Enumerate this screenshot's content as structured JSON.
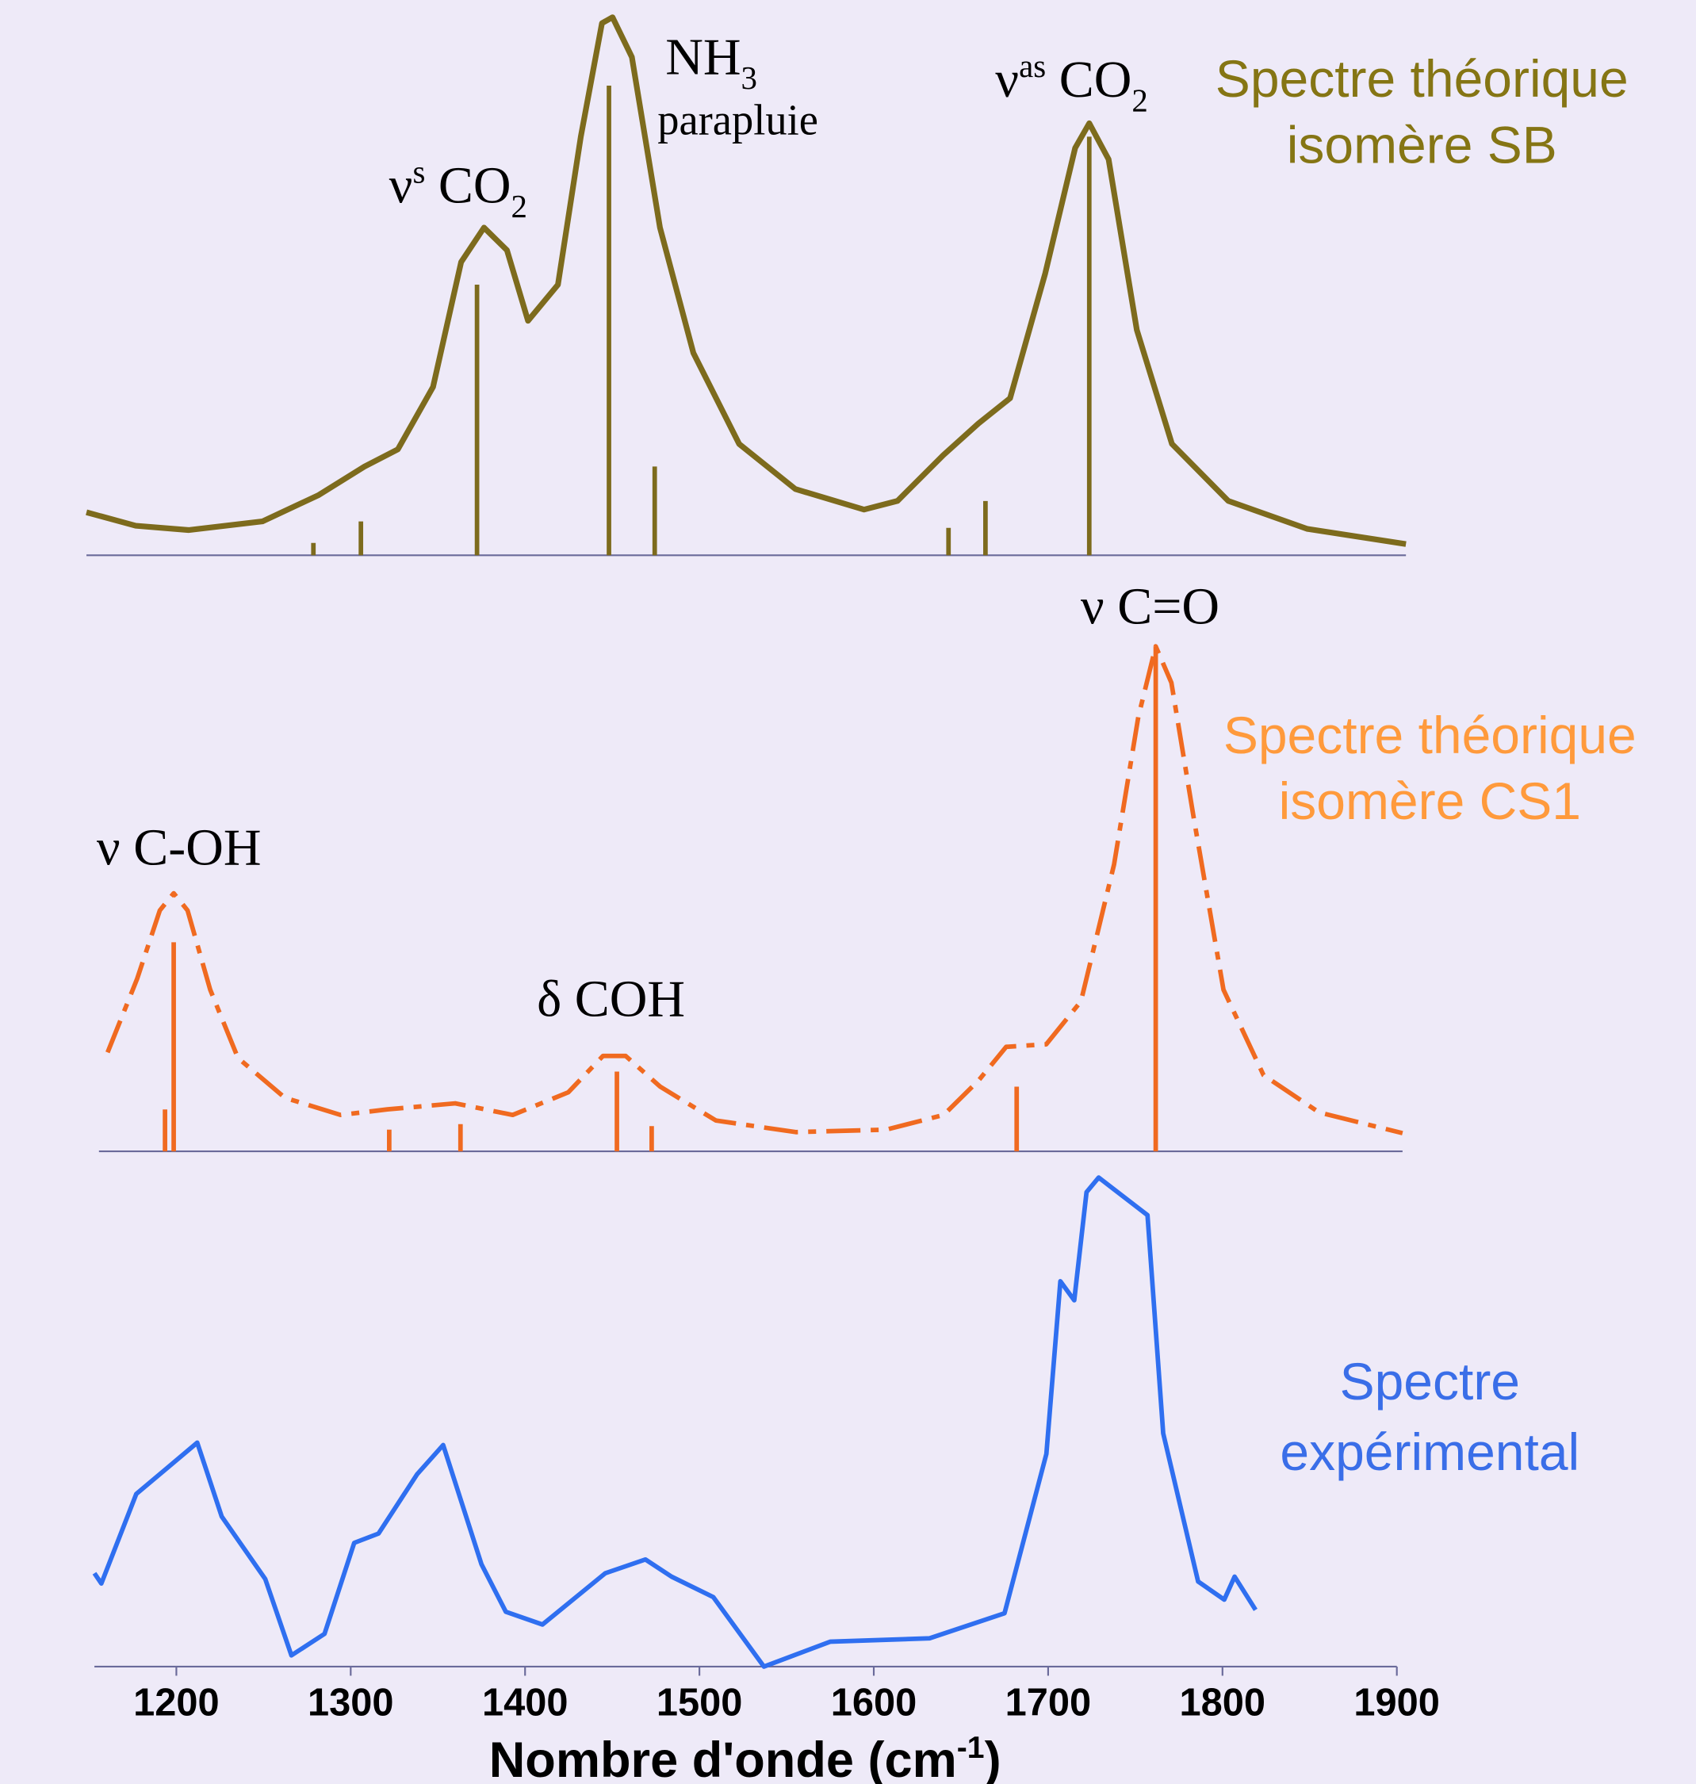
{
  "chart_data": [
    {
      "type": "line",
      "line_style": "solid",
      "color": "#7d6b1d",
      "legend_color": "#857514",
      "legend_lines": [
        "Spectre théorique",
        "isomère SB"
      ],
      "xlim": [
        1150,
        1900
      ],
      "ylim": [
        0,
        100
      ],
      "x": [
        1150,
        1178,
        1208,
        1250,
        1282,
        1308,
        1327,
        1347,
        1363,
        1376,
        1389,
        1401,
        1418,
        1431,
        1443,
        1449,
        1460,
        1476,
        1495,
        1521,
        1553,
        1592,
        1611,
        1637,
        1657,
        1675,
        1695,
        1712,
        1720,
        1731,
        1747,
        1767,
        1799,
        1844,
        1900
      ],
      "values": [
        8.0,
        5.5,
        4.7,
        6.3,
        11.2,
        16.5,
        19.7,
        31.3,
        54.5,
        60.9,
        56.7,
        43.6,
        50.3,
        77.8,
        98.9,
        100,
        92.6,
        60.9,
        37.6,
        20.7,
        12.3,
        8.5,
        10.1,
        18.6,
        24.5,
        29.2,
        52.4,
        75.7,
        80.3,
        73.6,
        41.9,
        20.7,
        10.1,
        4.9,
        2.1
      ],
      "sticks": {
        "x": [
          1279,
          1306,
          1372,
          1447,
          1473,
          1640,
          1661,
          1720
        ],
        "values": [
          2.3,
          6.3,
          50.3,
          87.3,
          16.5,
          5.1,
          10.1,
          77.8
        ]
      },
      "annotations": [
        [
          {
            "text": "ν"
          },
          {
            "sup": "s"
          },
          {
            "text": " CO"
          },
          {
            "sub": "2"
          }
        ],
        [
          {
            "text": "NH"
          },
          {
            "sub": "3"
          }
        ],
        [
          {
            "text": "parapluie"
          }
        ],
        [
          {
            "text": "ν"
          },
          {
            "sup": "as"
          },
          {
            "text": " CO"
          },
          {
            "sub": "2"
          }
        ]
      ]
    },
    {
      "type": "line",
      "line_style": "dashdot",
      "color": "#f06a20",
      "legend_color": "#ff9a3c",
      "legend_lines": [
        "Spectre théorique",
        "isomère CS1"
      ],
      "xlim": [
        1150,
        1900
      ],
      "ylim": [
        0,
        100
      ],
      "x": [
        1155,
        1172,
        1185,
        1193,
        1201,
        1214,
        1230,
        1257,
        1289,
        1316,
        1355,
        1388,
        1420,
        1440,
        1453,
        1473,
        1505,
        1551,
        1603,
        1636,
        1656,
        1672,
        1695,
        1715,
        1734,
        1748,
        1758,
        1767,
        1780,
        1797,
        1820,
        1852,
        1900
      ],
      "values": [
        19.6,
        34.2,
        47.7,
        51.1,
        47.7,
        32.0,
        18.5,
        10.6,
        7.2,
        8.3,
        9.5,
        7.2,
        11.7,
        18.9,
        18.9,
        12.8,
        6.1,
        3.8,
        4.3,
        7.2,
        14.0,
        20.7,
        21.2,
        29.7,
        56.8,
        86.0,
        100,
        92.8,
        65.8,
        32.0,
        15.1,
        7.7,
        3.6
      ],
      "sticks": {
        "x": [
          1188,
          1193,
          1317,
          1358,
          1448,
          1468,
          1678,
          1758
        ],
        "values": [
          8.3,
          41.4,
          4.3,
          5.4,
          15.8,
          5.0,
          12.8,
          100
        ]
      },
      "annotations": [
        [
          {
            "text": "ν C=O"
          }
        ],
        [
          {
            "text": "ν C-OH"
          }
        ],
        [
          {
            "text": "δ COH"
          }
        ]
      ]
    },
    {
      "type": "line",
      "line_style": "solid",
      "color": "#2f6ff0",
      "legend_color": "#3a6ee8",
      "legend_lines": [
        "Spectre",
        "expérimental"
      ],
      "xlim": [
        1153,
        1900
      ],
      "ylim": [
        0,
        100
      ],
      "xticks": [
        1200,
        1300,
        1400,
        1500,
        1600,
        1700,
        1800,
        1900
      ],
      "x_label": [
        {
          "text": "Nombre d'onde (cm"
        },
        {
          "sup": "-1"
        },
        {
          "text": ")"
        }
      ],
      "x": [
        1153,
        1157,
        1177,
        1195,
        1212,
        1226,
        1251,
        1266,
        1285,
        1302,
        1316,
        1338,
        1353,
        1375,
        1389,
        1410,
        1446,
        1469,
        1484,
        1508,
        1537,
        1575,
        1632,
        1675,
        1699,
        1707,
        1715,
        1722,
        1729,
        1757,
        1766,
        1786,
        1801,
        1807,
        1819
      ],
      "values": [
        19.1,
        17.0,
        35.3,
        40.7,
        45.8,
        30.7,
        17.9,
        2.3,
        6.7,
        25.3,
        27.2,
        39.3,
        45.3,
        20.9,
        11.2,
        8.6,
        19.1,
        21.9,
        18.4,
        14.2,
        0,
        5.1,
        5.8,
        10.9,
        43.5,
        78.8,
        74.9,
        97.0,
        100,
        92.3,
        47.7,
        17.4,
        13.7,
        18.4,
        11.6
      ]
    }
  ]
}
